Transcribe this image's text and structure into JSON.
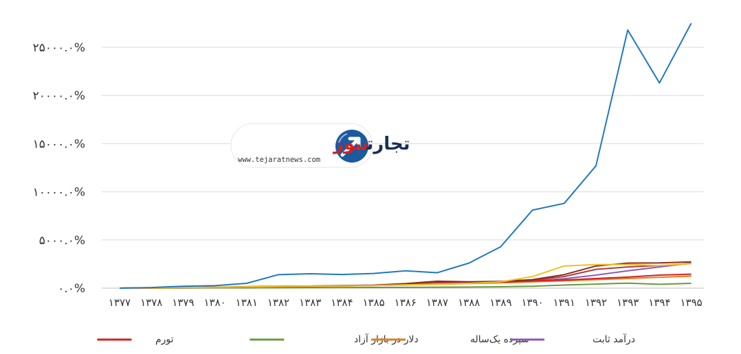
{
  "chart_data": {
    "type": "line",
    "categories": [
      "۱۳۷۷",
      "۱۳۷۸",
      "۱۳۷۹",
      "۱۳۸۰",
      "۱۳۸۱",
      "۱۳۸۲",
      "۱۳۸۳",
      "۱۳۸۴",
      "۱۳۸۵",
      "۱۳۸۶",
      "۱۳۸۷",
      "۱۳۸۸",
      "۱۳۸۹",
      "۱۳۹۰",
      "۱۳۹۱",
      "۱۳۹۲",
      "۱۳۹۳",
      "۱۳۹۴",
      "۱۳۹۵"
    ],
    "y_ticks": [
      {
        "value": 0,
        "label": "۰.۰%"
      },
      {
        "value": 5000,
        "label": "۵۰۰۰.۰%"
      },
      {
        "value": 10000,
        "label": "۱۰۰۰۰.۰%"
      },
      {
        "value": 15000,
        "label": "۱۵۰۰۰.۰%"
      },
      {
        "value": 20000,
        "label": "۲۰۰۰۰.۰%"
      },
      {
        "value": 25000,
        "label": "۲۵۰۰۰.۰%"
      }
    ],
    "ylim": [
      0,
      30000
    ],
    "grid": true,
    "legend_position": "bottom",
    "series": [
      {
        "name": "",
        "color": "#1f77c4",
        "values": [
          0,
          60,
          200,
          260,
          500,
          1400,
          1500,
          1420,
          1520,
          1800,
          1600,
          2600,
          4300,
          8100,
          8800,
          12700,
          26800,
          21300,
          27500
        ]
      },
      {
        "name": "",
        "color": "#f0c020",
        "values": [
          0,
          20,
          60,
          90,
          130,
          180,
          210,
          230,
          270,
          350,
          420,
          500,
          650,
          1200,
          2300,
          2450,
          2450,
          2350,
          2550
        ]
      },
      {
        "name": "",
        "color": "#8b2a1a",
        "values": [
          0,
          25,
          60,
          100,
          150,
          200,
          220,
          270,
          310,
          470,
          720,
          660,
          700,
          880,
          1400,
          2300,
          2600,
          2620,
          2720
        ]
      },
      {
        "name": "",
        "color": "#b23a3a",
        "values": [
          0,
          20,
          55,
          90,
          135,
          180,
          210,
          250,
          290,
          420,
          610,
          600,
          680,
          840,
          1200,
          1950,
          2200,
          2350,
          2550
        ]
      },
      {
        "name": "تورم",
        "color": "#d42020",
        "values": [
          0,
          20,
          50,
          80,
          120,
          160,
          200,
          240,
          290,
          370,
          460,
          540,
          630,
          750,
          850,
          1000,
          1150,
          1350,
          1450
        ]
      },
      {
        "name": "دلار در بازار آزاد",
        "color": "#6a9a3a",
        "values": [
          0,
          5,
          15,
          25,
          30,
          40,
          50,
          60,
          70,
          80,
          100,
          120,
          140,
          200,
          320,
          420,
          520,
          400,
          500
        ]
      },
      {
        "name": "سپرده یک‌ساله",
        "color": "#e07b20",
        "values": [
          0,
          15,
          40,
          70,
          100,
          140,
          180,
          220,
          270,
          330,
          400,
          470,
          550,
          650,
          760,
          880,
          1000,
          1130,
          1250
        ]
      },
      {
        "name": "درآمد ثابت",
        "color": "#8a5ab0",
        "values": [
          0,
          15,
          45,
          75,
          110,
          150,
          190,
          230,
          280,
          350,
          430,
          520,
          620,
          760,
          980,
          1350,
          1800,
          2200,
          2600
        ]
      }
    ]
  },
  "logo": {
    "brand_tejarat": "تجارت",
    "brand_news": "نیوز",
    "url": "www.tejaratnews.com",
    "colors": {
      "dark": "#1a2c5a",
      "red": "#d42020",
      "circle": "#1a5aa0"
    }
  }
}
